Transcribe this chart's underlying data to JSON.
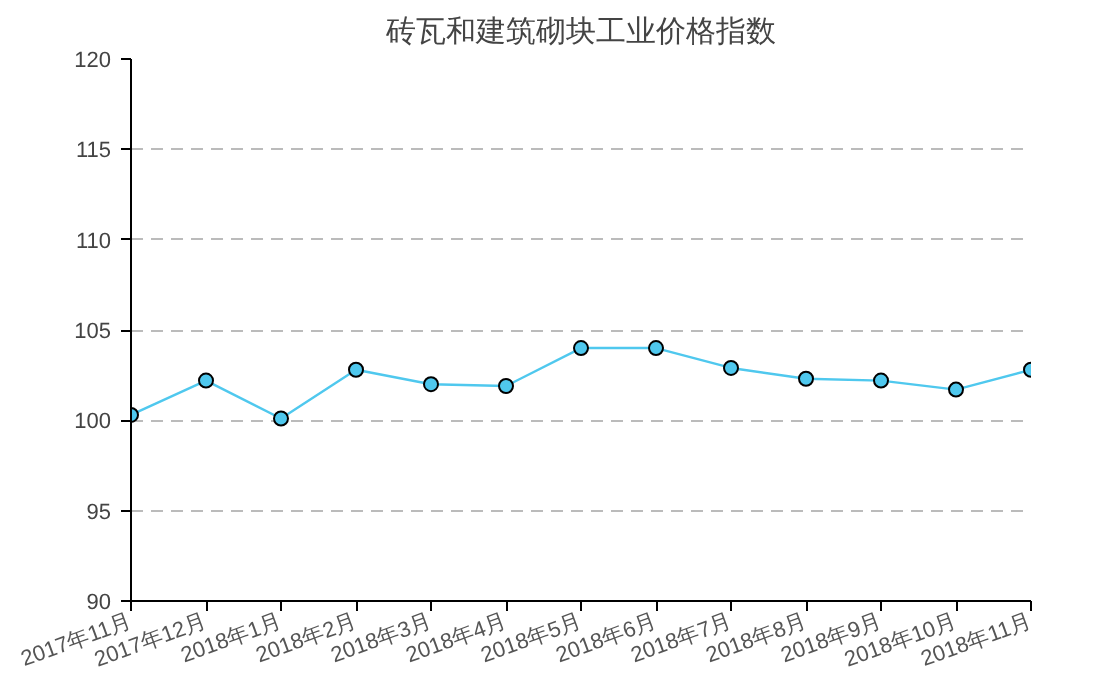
{
  "chart_data": {
    "type": "line",
    "title": "砖瓦和建筑砌块工业价格指数",
    "categories": [
      "2017年11月",
      "2017年12月",
      "2018年1月",
      "2018年2月",
      "2018年3月",
      "2018年4月",
      "2018年5月",
      "2018年6月",
      "2018年7月",
      "2018年8月",
      "2018年9月",
      "2018年10月",
      "2018年11月"
    ],
    "series": [
      {
        "color": "#4fc8ee",
        "values": [
          100.3,
          102.2,
          100.1,
          102.8,
          102.0,
          101.9,
          104.0,
          104.0,
          102.9,
          102.3,
          102.2,
          101.7,
          102.8
        ]
      }
    ],
    "ylim": [
      90,
      120
    ],
    "yticks": [
      90,
      95,
      100,
      105,
      110,
      115,
      120
    ],
    "grid": "y",
    "marker": "circle",
    "line_style": "solid"
  }
}
